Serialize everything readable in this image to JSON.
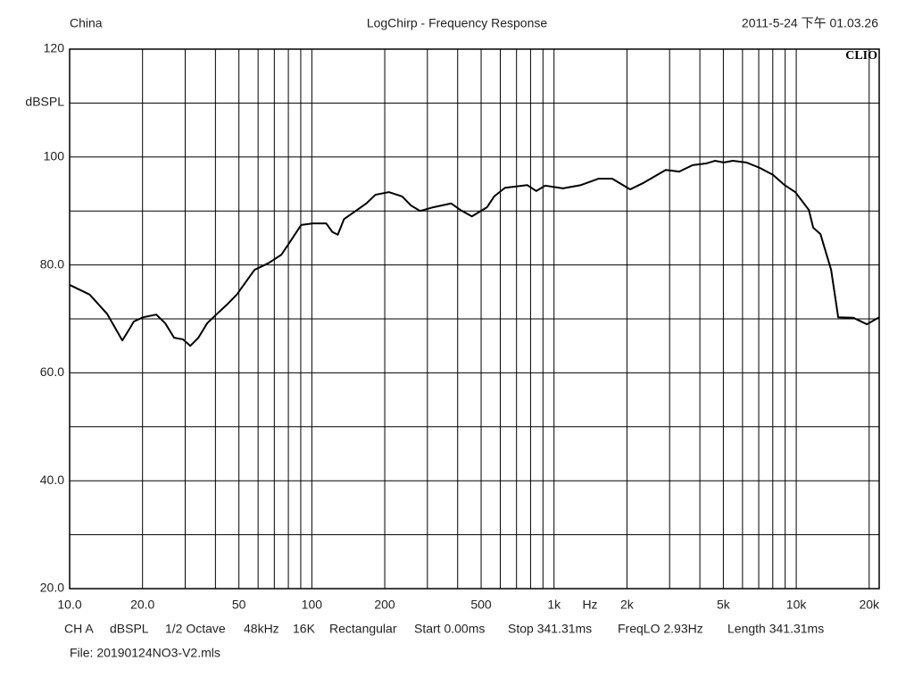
{
  "header": {
    "left": "China",
    "center": "LogChirp - Frequency Response",
    "right": "2011-5-24 下午 01.03.26"
  },
  "chart_data": {
    "type": "line",
    "log_x": true,
    "grid": true,
    "color": "#000000",
    "brand": "CLIO",
    "ylabel": "dBSPL",
    "xlabel": "Hz",
    "xlim": [
      10,
      22000
    ],
    "ylim": [
      20,
      120
    ],
    "xticks": [
      {
        "value": 10,
        "label": "10.0"
      },
      {
        "value": 20,
        "label": "20.0"
      },
      50,
      100,
      200,
      500,
      {
        "value": 1000,
        "label": "1k"
      },
      {
        "value": 2000,
        "label": "2k"
      },
      {
        "value": 5000,
        "label": "5k"
      },
      {
        "value": 10000,
        "label": "10k"
      },
      {
        "value": 20000,
        "label": "20k"
      }
    ],
    "xgrid_minor": [
      30,
      40,
      60,
      70,
      80,
      90,
      300,
      400,
      600,
      700,
      800,
      900,
      3000,
      4000,
      6000,
      7000,
      8000,
      9000
    ],
    "yticks": [
      {
        "value": 20,
        "label": "20.0"
      },
      {
        "value": 40,
        "label": "40.0"
      },
      {
        "value": 60,
        "label": "60.0"
      },
      {
        "value": 80,
        "label": "80.0"
      },
      100,
      120
    ],
    "ygrid_minor": [
      30,
      50,
      70,
      90,
      110
    ],
    "x": [
      10,
      12.1,
      14.3,
      16.5,
      17.7,
      18.4,
      20.1,
      22.8,
      24.8,
      27.0,
      29.4,
      31.5,
      34.0,
      37.0,
      40.3,
      45.0,
      49.0,
      58.0,
      66.0,
      74.9,
      81.6,
      90.3,
      100.9,
      114.6,
      121.6,
      128,
      135.8,
      154,
      168,
      183,
      208,
      236,
      257,
      280,
      318,
      376,
      410,
      458,
      529,
      566,
      627,
      775,
      844,
      919,
      1089,
      1291,
      1530,
      1738,
      2060,
      2339,
      2893,
      3287,
      3733,
      4240,
      4616,
      5024,
      5470,
      6213,
      7059,
      8016,
      8954,
      9910,
      11270,
      11750,
      12590,
      13930,
      14900,
      17220,
      19590,
      22000
    ],
    "values": [
      76.3,
      74.5,
      70.9,
      66.0,
      68.2,
      69.5,
      70.3,
      70.8,
      69.2,
      66.5,
      66.2,
      65.0,
      66.5,
      69.2,
      70.8,
      72.8,
      74.5,
      79.1,
      80.3,
      81.9,
      84.4,
      87.4,
      87.7,
      87.7,
      86.1,
      85.6,
      88.5,
      90.2,
      91.4,
      93.0,
      93.5,
      92.7,
      91.0,
      90.0,
      90.7,
      91.4,
      90.2,
      89.0,
      90.7,
      92.7,
      94.3,
      94.8,
      93.7,
      94.7,
      94.2,
      94.8,
      96.0,
      96.0,
      94.0,
      95.2,
      97.6,
      97.3,
      98.5,
      98.8,
      99.3,
      99.0,
      99.3,
      99.0,
      98.0,
      96.7,
      94.8,
      93.5,
      90.2,
      86.9,
      85.7,
      79.1,
      70.3,
      70.2,
      69.0,
      70.3
    ]
  },
  "footer": {
    "settings": [
      "CH A",
      "dBSPL",
      "1/2 Octave",
      "48kHz",
      "16K",
      "Rectangular",
      "Start 0.00ms",
      "Stop 341.31ms",
      "FreqLO 2.93Hz",
      "Length 341.31ms"
    ],
    "file": "File: 20190124NO3-V2.mls"
  }
}
